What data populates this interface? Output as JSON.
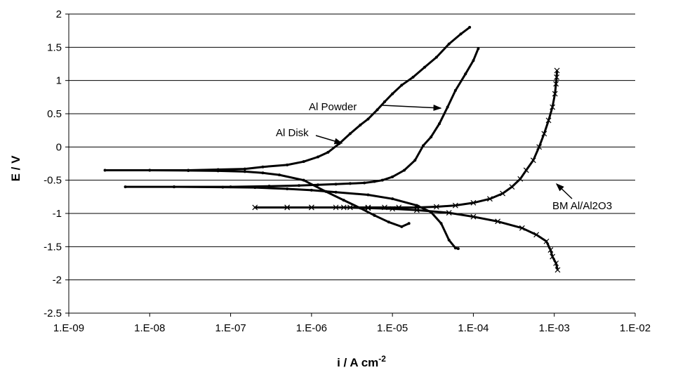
{
  "chart_data": {
    "type": "line",
    "title": "",
    "xlabel": "i / A cm",
    "xlabel_sup": "-2",
    "ylabel": "E / V",
    "xscale": "log",
    "xlim": [
      1e-09,
      0.01
    ],
    "ylim": [
      -2.5,
      2
    ],
    "grid": "horizontal",
    "xtick_labels": [
      "1.E-09",
      "1.E-08",
      "1.E-07",
      "1.E-06",
      "1.E-05",
      "1.E-04",
      "1.E-03",
      "1.E-02"
    ],
    "xtick_values": [
      1e-09,
      1e-08,
      1e-07,
      1e-06,
      1e-05,
      0.0001,
      0.001,
      0.01
    ],
    "ytick_labels": [
      "2",
      "1.5",
      "1",
      "0.5",
      "0",
      "-0.5",
      "-1",
      "-1.5",
      "-2",
      "-2.5"
    ],
    "ytick_values": [
      2,
      1.5,
      1,
      0.5,
      0,
      -0.5,
      -1,
      -1.5,
      -2,
      -2.5
    ],
    "annotations": [
      {
        "text": "Al Powder",
        "series": "Al Powder"
      },
      {
        "text": "Al Disk",
        "series": "Al Disk"
      },
      {
        "text": "BM Al/Al2O3",
        "series": "BM Al/Al2O3"
      }
    ],
    "series": [
      {
        "name": "Al Disk",
        "marker": "dot",
        "color": "#000000",
        "x": [
          1.6e-05,
          1.3e-05,
          9e-06,
          6e-06,
          4e-06,
          2.5e-06,
          1.5e-06,
          8e-07,
          4e-07,
          2.5e-07,
          1.5e-07,
          7e-08,
          3e-08,
          1e-08,
          2.8e-09,
          1e-08,
          3e-08,
          7e-08,
          1.5e-07,
          2.5e-07,
          5e-07,
          8e-07,
          1.2e-06,
          1.6e-06,
          2.2e-06,
          3e-06,
          4e-06,
          5e-06,
          6.5e-06,
          8e-06,
          1e-05,
          1.3e-05,
          1.8e-05,
          2.5e-05,
          3.5e-05,
          5e-05,
          7e-05,
          9e-05
        ],
        "y": [
          -1.15,
          -1.2,
          -1.13,
          -1.03,
          -0.92,
          -0.8,
          -0.67,
          -0.5,
          -0.42,
          -0.39,
          -0.37,
          -0.36,
          -0.355,
          -0.35,
          -0.35,
          -0.35,
          -0.35,
          -0.34,
          -0.33,
          -0.3,
          -0.27,
          -0.22,
          -0.15,
          -0.08,
          0.05,
          0.2,
          0.33,
          0.42,
          0.56,
          0.68,
          0.8,
          0.93,
          1.05,
          1.2,
          1.35,
          1.55,
          1.7,
          1.8
        ]
      },
      {
        "name": "Al Powder",
        "marker": "dot",
        "color": "#000000",
        "x": [
          6.5e-05,
          6e-05,
          5e-05,
          4e-05,
          3e-05,
          2e-05,
          1e-05,
          5e-06,
          2e-06,
          1e-06,
          5e-07,
          2e-07,
          8e-08,
          2e-08,
          5e-09,
          2e-08,
          1e-07,
          3e-07,
          7e-07,
          1.2e-06,
          2e-06,
          3e-06,
          4.5e-06,
          6e-06,
          7.5e-06,
          1e-05,
          1.4e-05,
          1.9e-05,
          2.4e-05,
          3e-05,
          3.8e-05,
          4.8e-05,
          6e-05,
          8e-05,
          0.0001,
          0.000115
        ],
        "y": [
          -1.53,
          -1.52,
          -1.4,
          -1.15,
          -0.98,
          -0.88,
          -0.78,
          -0.72,
          -0.68,
          -0.65,
          -0.63,
          -0.61,
          -0.605,
          -0.6,
          -0.6,
          -0.6,
          -0.6,
          -0.59,
          -0.58,
          -0.57,
          -0.56,
          -0.55,
          -0.54,
          -0.52,
          -0.5,
          -0.45,
          -0.35,
          -0.2,
          0.02,
          0.15,
          0.35,
          0.6,
          0.85,
          1.1,
          1.3,
          1.48
        ]
      },
      {
        "name": "BM Al/Al2O3",
        "marker": "x",
        "color": "#000000",
        "x": [
          0.0011,
          0.00105,
          0.00095,
          0.0009,
          0.0008,
          0.0006,
          0.0004,
          0.0002,
          0.0001,
          5e-05,
          2e-05,
          1e-05,
          5e-06,
          2.5e-06,
          1e-06,
          5e-07,
          2e-07,
          5e-07,
          1e-06,
          2e-06,
          3e-06,
          5e-06,
          8e-06,
          1.2e-05,
          2e-05,
          3.5e-05,
          6e-05,
          0.0001,
          0.00016,
          0.00023,
          0.0003,
          0.00038,
          0.00045,
          0.00055,
          0.00065,
          0.00075,
          0.00085,
          0.00095,
          0.00102,
          0.00105,
          0.00107,
          0.00108
        ],
        "y": [
          -1.85,
          -1.75,
          -1.65,
          -1.55,
          -1.42,
          -1.32,
          -1.22,
          -1.12,
          -1.05,
          -0.99,
          -0.95,
          -0.93,
          -0.92,
          -0.91,
          -0.91,
          -0.91,
          -0.91,
          -0.91,
          -0.91,
          -0.91,
          -0.91,
          -0.91,
          -0.91,
          -0.91,
          -0.91,
          -0.9,
          -0.88,
          -0.84,
          -0.78,
          -0.7,
          -0.6,
          -0.48,
          -0.35,
          -0.2,
          0.0,
          0.2,
          0.4,
          0.6,
          0.8,
          0.95,
          1.05,
          1.15
        ]
      }
    ]
  }
}
